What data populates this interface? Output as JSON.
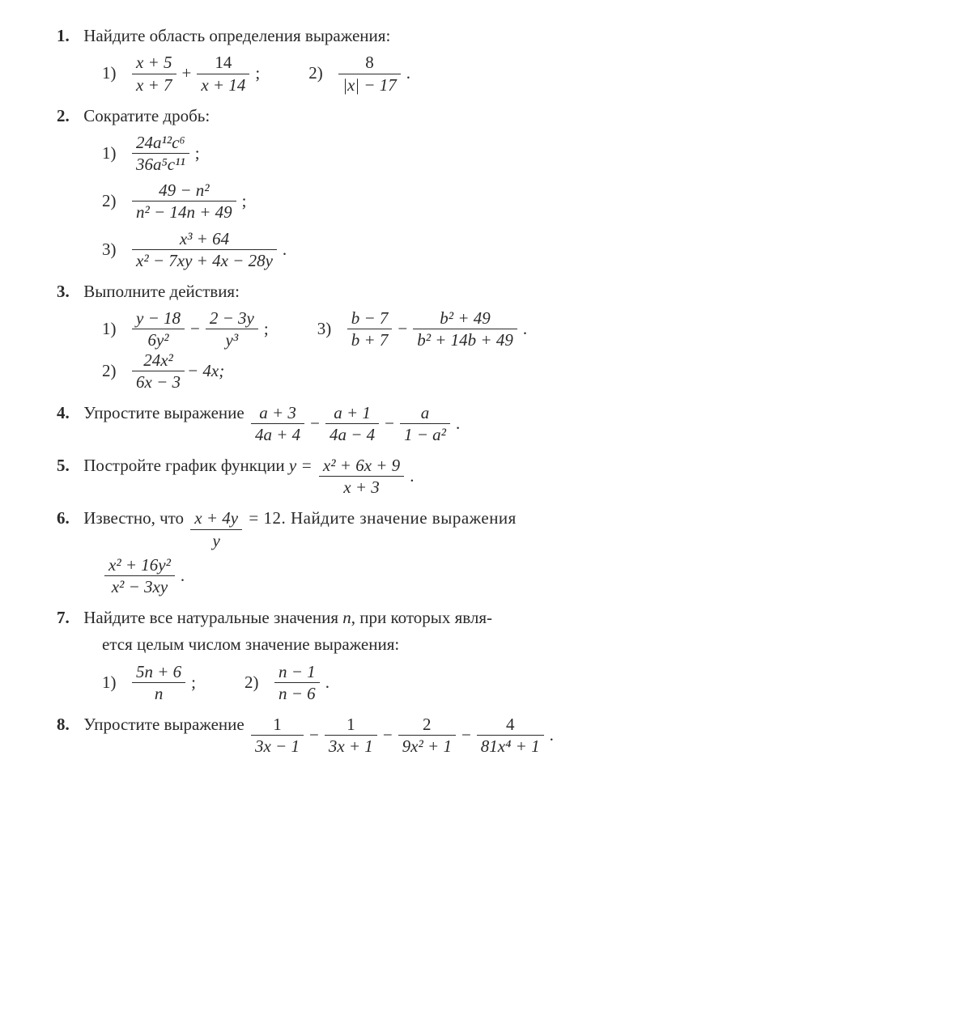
{
  "p1": {
    "num": "1.",
    "text": "Найдите область определения выражения:",
    "s1": "1)",
    "s2": "2)",
    "f1n": "x + 5",
    "f1d": "x + 7",
    "f2n": "14",
    "f2d": "x + 14",
    "f3n": "8",
    "f3d": "|x| − 17",
    "semi": ";",
    "dot": "."
  },
  "p2": {
    "num": "2.",
    "text": "Сократите дробь:",
    "s1": "1)",
    "s2": "2)",
    "s3": "3)",
    "f1n": "24a¹²c⁶",
    "f1d": "36a⁵c¹¹",
    "f2n": "49 − n²",
    "f2d": "n² − 14n + 49",
    "f3n": "x³ + 64",
    "f3d": "x² − 7xy + 4x − 28y",
    "semi": ";",
    "dot": "."
  },
  "p3": {
    "num": "3.",
    "text": "Выполните действия:",
    "s1": "1)",
    "s2": "2)",
    "s3": "3)",
    "f1an": "y − 18",
    "f1ad": "6y²",
    "f1bn": "2 − 3y",
    "f1bd": "y³",
    "f2an": "24x²",
    "f2ad": "6x − 3",
    "f2tail": " − 4x;",
    "f3an": "b − 7",
    "f3ad": "b + 7",
    "f3bn": "b² + 49",
    "f3bd": "b² + 14b + 49",
    "minus": "−",
    "semi": ";",
    "dot": "."
  },
  "p4": {
    "num": "4.",
    "text": "Упростите выражение ",
    "f1n": "a + 3",
    "f1d": "4a + 4",
    "f2n": "a + 1",
    "f2d": "4a − 4",
    "f3n": "a",
    "f3d": "1 − a²",
    "minus": "−",
    "dot": "."
  },
  "p5": {
    "num": "5.",
    "text": "Постройте график функции ",
    "eq": "y =",
    "fn": "x² + 6x + 9",
    "fd": "x + 3",
    "dot": "."
  },
  "p6": {
    "num": "6.",
    "text1": "Известно, что ",
    "fn1": "x + 4y",
    "fd1": "y",
    "mid": " = 12.  Найдите  значение  выражения",
    "fn2": "x² + 16y²",
    "fd2": "x² − 3xy",
    "dot": "."
  },
  "p7": {
    "num": "7.",
    "text": "Найдите все натуральные значения ",
    "nvar": "n",
    "text2": ", при которых явля-",
    "text3": "ется целым числом значение выражения:",
    "s1": "1)",
    "s2": "2)",
    "f1n": "5n + 6",
    "f1d": "n",
    "f2n": "n − 1",
    "f2d": "n − 6",
    "semi": ";",
    "dot": "."
  },
  "p8": {
    "num": "8.",
    "text": "Упростите выражение ",
    "f1n": "1",
    "f1d": "3x − 1",
    "f2n": "1",
    "f2d": "3x + 1",
    "f3n": "2",
    "f3d": "9x² + 1",
    "f4n": "4",
    "f4d": "81x⁴ + 1",
    "minus": "−",
    "dot": "."
  }
}
